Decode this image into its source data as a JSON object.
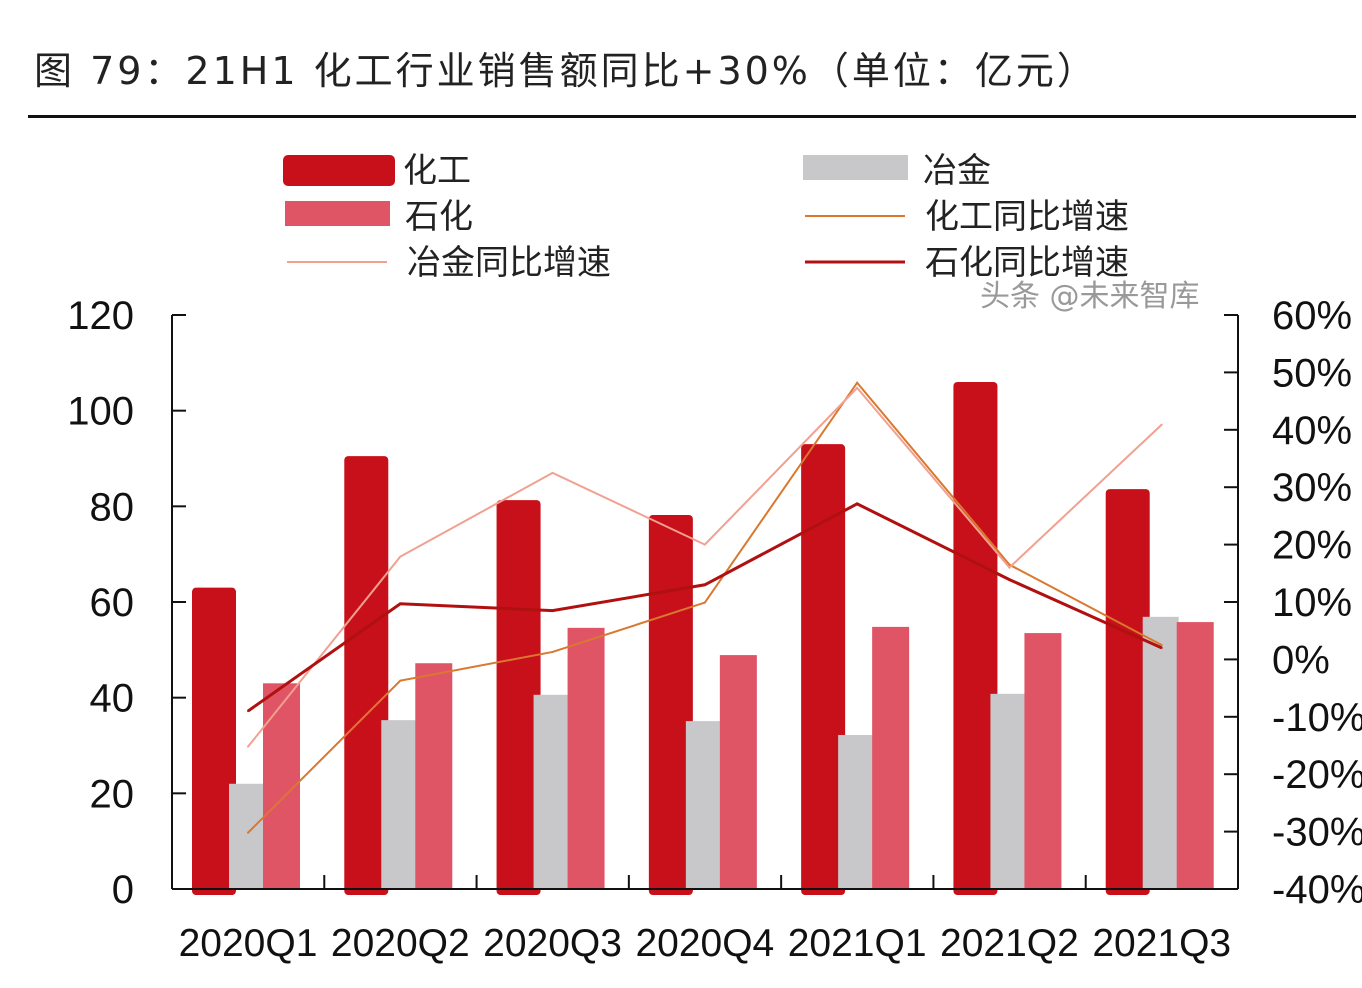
{
  "title": "图 79：21H1 化工行业销售额同比+30%（单位：亿元）",
  "watermark": "头条 @未来智库",
  "chart_data": {
    "type": "bar",
    "title": "图 79：21H1 化工行业销售额同比+30%（单位：亿元）",
    "categories": [
      "2020Q1",
      "2020Q2",
      "2020Q3",
      "2020Q4",
      "2021Q1",
      "2021Q2",
      "2021Q3"
    ],
    "y_left": {
      "ylim": [
        0,
        120
      ],
      "ticks": [
        "0",
        "20",
        "40",
        "60",
        "80",
        "100",
        "120"
      ]
    },
    "y_right": {
      "ylim": [
        -40,
        60
      ],
      "ticks": [
        "-40%",
        "-30%",
        "-20%",
        "-10%",
        "0%",
        "10%",
        "20%",
        "30%",
        "40%",
        "50%",
        "60%"
      ]
    },
    "legend_position": "top",
    "grid": false,
    "bar_series": [
      {
        "name": "化工",
        "color": "#C8101A",
        "values": [
          63,
          90.5,
          81.3,
          78.2,
          93,
          106,
          83.6
        ]
      },
      {
        "name": "冶金",
        "color": "#C8C8CA",
        "values": [
          22,
          35.3,
          40.6,
          35.1,
          32.2,
          40.8,
          56.9
        ]
      },
      {
        "name": "石化",
        "color": "#E05566",
        "values": [
          43,
          47.2,
          54.6,
          48.9,
          54.8,
          53.5,
          55.8
        ]
      }
    ],
    "line_series": [
      {
        "name": "化工同比增速",
        "axis": "right",
        "color": "#D9782E",
        "values": [
          -30.2,
          -3.7,
          1.3,
          9.9,
          48.2,
          16.5,
          2.5
        ]
      },
      {
        "name": "冶金同比增速",
        "axis": "right",
        "color": "#F2A090",
        "values": [
          -15.2,
          17.9,
          32.5,
          20,
          47.3,
          16,
          40.9
        ]
      },
      {
        "name": "石化同比增速",
        "axis": "right",
        "color": "#B01010",
        "values": [
          -9,
          9.7,
          8.5,
          13,
          27.1,
          13.9,
          2
        ]
      }
    ]
  }
}
